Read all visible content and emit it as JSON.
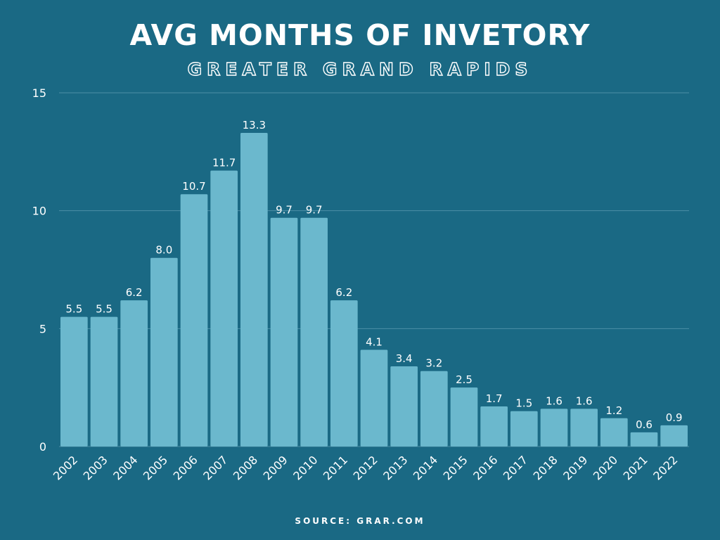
{
  "colors": {
    "background": "#1a6984",
    "bar": "#6bb8cd",
    "gridline": "#4d8fa6",
    "text": "#ffffff"
  },
  "footer": {
    "source": "SOURCE: GRAR.COM"
  },
  "chart_data": {
    "type": "bar",
    "title": "AVG MONTHS OF INVETORY",
    "subtitle": "GREATER GRAND RAPIDS",
    "categories": [
      "2002",
      "2003",
      "2004",
      "2005",
      "2006",
      "2007",
      "2008",
      "2009",
      "2010",
      "2011",
      "2012",
      "2013",
      "2014",
      "2015",
      "2016",
      "2017",
      "2018",
      "2019",
      "2020",
      "2021",
      "2022"
    ],
    "values": [
      5.5,
      5.5,
      6.2,
      8.0,
      10.7,
      11.7,
      13.3,
      9.7,
      9.7,
      6.2,
      4.1,
      3.4,
      3.2,
      2.5,
      1.7,
      1.5,
      1.6,
      1.6,
      1.2,
      0.6,
      0.9
    ],
    "data_labels": [
      "5.5",
      "5.5",
      "6.2",
      "8.0",
      "10.7",
      "11.7",
      "13.3",
      "9.7",
      "9.7",
      "6.2",
      "4.1",
      "3.4",
      "3.2",
      "2.5",
      "1.7",
      "1.5",
      "1.6",
      "1.6",
      "1.2",
      "0.6",
      "0.9"
    ],
    "y_ticks": [
      0,
      5,
      10,
      15
    ],
    "ylim": [
      0,
      15
    ],
    "grid": true,
    "legend": "none",
    "x_tick_rotation_deg": -45
  }
}
